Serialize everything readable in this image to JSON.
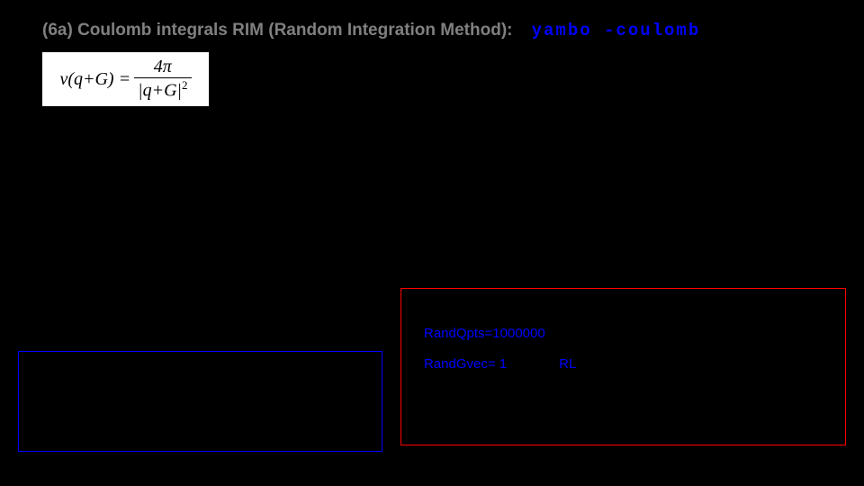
{
  "heading": {
    "prefix": "(6a) Coulomb integrals RIM (Random Integration Method):",
    "command": "yambo -coulomb"
  },
  "formula": {
    "lhs": "v(q+G) =",
    "numerator": "4π",
    "denominator": "|q+G|",
    "denom_exponent": "2"
  },
  "red_box": {
    "rand_qpts_label": "RandQpts=",
    "rand_qpts_value": "1000000",
    "rand_gvec_label": "RandGvec= ",
    "rand_gvec_value": "1",
    "rand_gvec_unit": "RL"
  },
  "style": {
    "background": "#000000",
    "heading_color": "#808080",
    "command_color": "#0000ff",
    "blue_border": "#0000ff",
    "red_border": "#ff0000",
    "formula_bg": "#ffffff"
  }
}
